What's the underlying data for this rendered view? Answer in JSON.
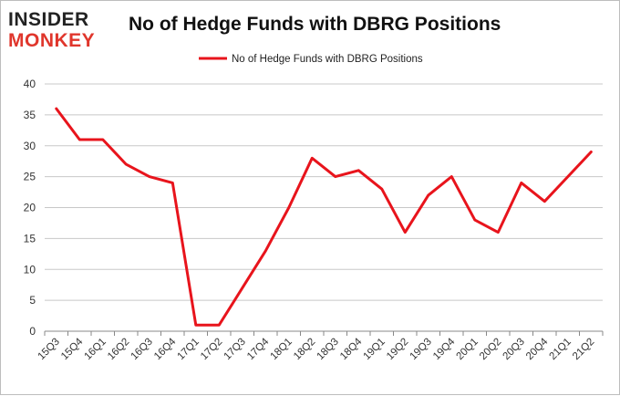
{
  "logo": {
    "line1": "INSIDER",
    "line2": "MONKEY"
  },
  "chart_data": {
    "type": "line",
    "title": "No of Hedge Funds with DBRG Positions",
    "xlabel": "",
    "ylabel": "",
    "categories": [
      "15Q3",
      "15Q4",
      "16Q1",
      "16Q2",
      "16Q3",
      "16Q4",
      "17Q1",
      "17Q2",
      "17Q3",
      "17Q4",
      "18Q1",
      "18Q2",
      "18Q3",
      "18Q4",
      "19Q1",
      "19Q2",
      "19Q3",
      "19Q4",
      "20Q1",
      "20Q2",
      "20Q3",
      "20Q4",
      "21Q1",
      "21Q2"
    ],
    "series": [
      {
        "name": "No of Hedge Funds with DBRG Positions",
        "color": "#e8141c",
        "values": [
          36,
          31,
          31,
          27,
          25,
          24,
          1,
          1,
          7,
          13,
          20,
          28,
          25,
          26,
          23,
          16,
          22,
          25,
          18,
          16,
          24,
          21,
          25,
          29
        ]
      }
    ],
    "ylim": [
      0,
      40
    ],
    "yticks": [
      0,
      5,
      10,
      15,
      20,
      25,
      30,
      35,
      40
    ],
    "grid": true,
    "legend_position": "top-center"
  }
}
